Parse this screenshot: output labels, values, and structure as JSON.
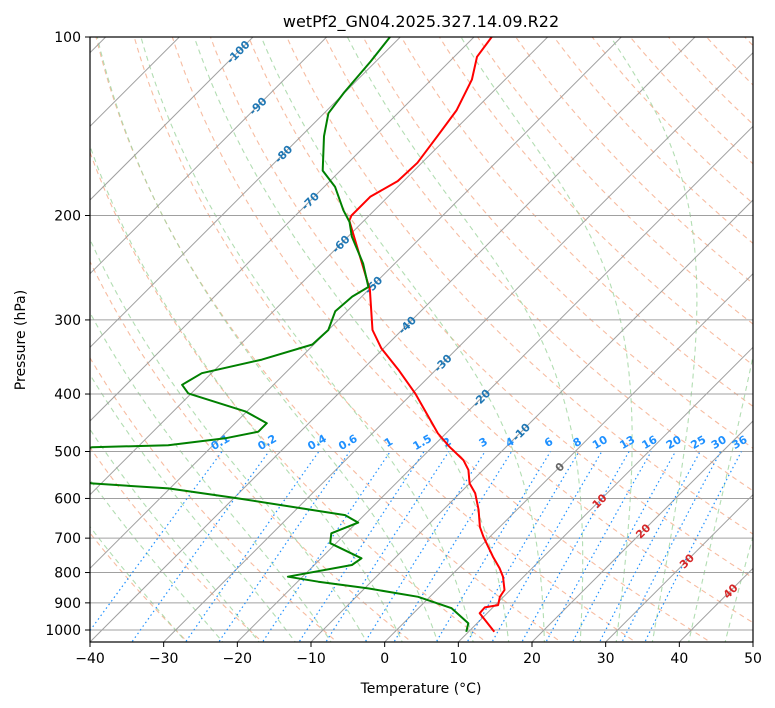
{
  "chart_data": {
    "type": "line",
    "subtype": "skew-t log-p",
    "title": "wetPf2_GN04.2025.327.14.09.R22",
    "xlabel": "Temperature (°C)",
    "ylabel": "Pressure (hPa)",
    "xlim": [
      -40,
      50
    ],
    "ylim": [
      1050,
      100
    ],
    "skew_deg": 45,
    "grid": true,
    "x_ticks": [
      "−40",
      "−30",
      "−20",
      "−10",
      "0",
      "10",
      "20",
      "30",
      "40",
      "50"
    ],
    "x_tick_values": [
      -40,
      -30,
      -20,
      -10,
      0,
      10,
      20,
      30,
      40,
      50
    ],
    "y_ticks": [
      "100",
      "200",
      "300",
      "400",
      "500",
      "600",
      "700",
      "800",
      "900",
      "1000"
    ],
    "y_tick_values": [
      100,
      200,
      300,
      400,
      500,
      600,
      700,
      800,
      900,
      1000
    ],
    "isotherm_labels": [
      "-100",
      "-90",
      "-80",
      "-70",
      "-60",
      "-50",
      "-40",
      "-30",
      "-20",
      "-10",
      "0",
      "10",
      "20",
      "30",
      "40"
    ],
    "mixing_ratio_labels": [
      "0.1",
      "0.2",
      "0.4",
      "0.6",
      "1",
      "1.5",
      "2",
      "3",
      "4",
      "6",
      "8",
      "10",
      "13",
      "16",
      "20",
      "25",
      "30",
      "36"
    ],
    "series": [
      {
        "name": "Temperature",
        "color": "#ff0000",
        "pressure": [
          1007,
          937,
          916,
          908,
          879,
          856,
          813,
          787,
          752,
          696,
          670,
          627,
          588,
          566,
          537,
          517,
          491,
          466,
          399,
          364,
          335,
          312,
          267,
          204,
          200,
          186,
          175,
          163,
          147,
          133,
          118,
          108,
          100
        ],
        "temperature": [
          13.5,
          9.0,
          8.9,
          10.4,
          9.5,
          9.2,
          7.2,
          5.6,
          3.1,
          -0.9,
          -2.7,
          -5.2,
          -7.9,
          -10.0,
          -12.0,
          -14.0,
          -17.7,
          -21.1,
          -29.6,
          -35.1,
          -40.3,
          -44.0,
          -49.8,
          -62.0,
          -62.4,
          -62.4,
          -60.8,
          -60.6,
          -61.5,
          -62.4,
          -64.5,
          -66.9,
          -67.6
        ]
      },
      {
        "name": "Dewpoint",
        "color": "#008000",
        "pressure": [
          1007,
          974,
          919,
          879,
          851,
          829,
          813,
          777,
          757,
          714,
          687,
          659,
          640,
          599,
          577,
          566,
          527,
          492,
          488,
          475,
          463,
          448,
          428,
          399,
          386,
          369,
          350,
          330,
          312,
          290,
          274,
          264,
          241,
          217,
          205,
          196,
          179,
          168,
          147,
          134.5,
          124,
          110,
          100
        ],
        "temperature": [
          9.7,
          8.8,
          4.5,
          -1.6,
          -9.5,
          -17.2,
          -22.0,
          -14.9,
          -14.5,
          -20.8,
          -22.0,
          -19.8,
          -22.6,
          -39.8,
          -50.2,
          -61.3,
          -70.8,
          -66.2,
          -56.1,
          -49.3,
          -45.7,
          -45.7,
          -50.2,
          -60.4,
          -62.4,
          -61.3,
          -55.0,
          -50.2,
          -50.0,
          -51.6,
          -51.3,
          -50.4,
          -54.3,
          -59.5,
          -61.8,
          -64.2,
          -68.5,
          -72.4,
          -76.9,
          -79.4,
          -80.1,
          -80.7,
          -81.4
        ]
      }
    ],
    "colors": {
      "isotherm": "#a0a0a0",
      "isobar": "#a0a0a0",
      "dry_adiabat": "#f4a582",
      "moist_adiabat": "#9fd49f",
      "mixing_ratio": "#1e90ff",
      "neg_label": "#1f77b4",
      "zero_label": "#666666",
      "pos_label": "#d62728"
    }
  }
}
